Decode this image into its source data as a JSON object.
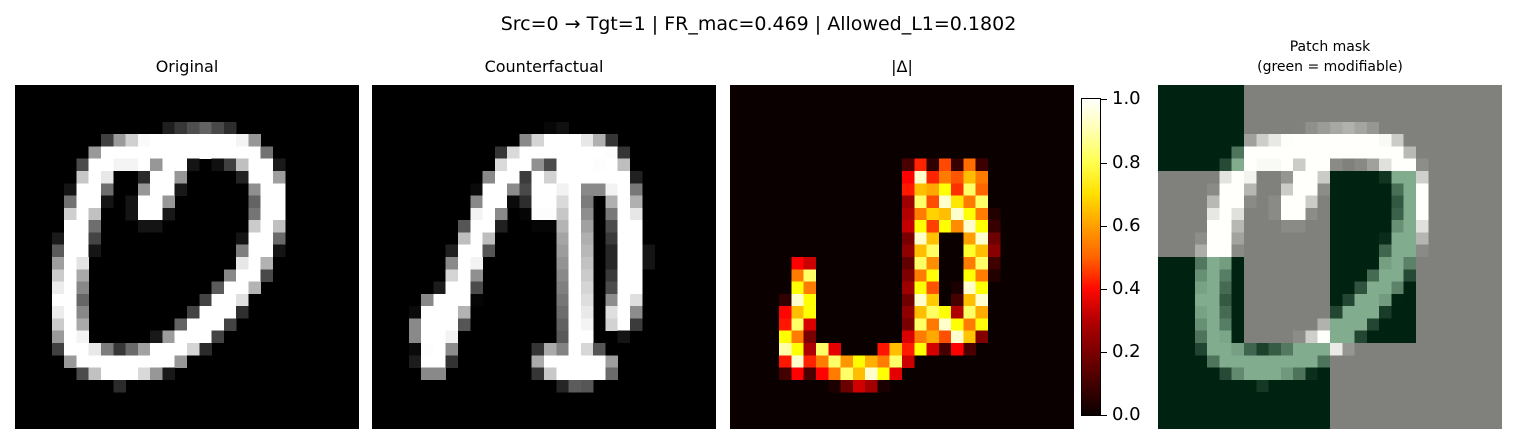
{
  "suptitle": "Src=0 → Tgt=1 | FR_mac=0.469 | Allowed_L1=0.1802",
  "chart_data": [
    {
      "type": "heatmap",
      "title": "Original",
      "colormap": "gray",
      "grid": 28,
      "strokes": [
        [
          [
            10.5,
            6
          ],
          [
            9,
            5.5
          ],
          [
            7.5,
            6
          ],
          [
            6.5,
            7.5
          ],
          [
            6,
            9
          ],
          [
            5.3,
            11
          ],
          [
            5,
            13
          ],
          [
            4.5,
            15
          ],
          [
            4.2,
            17.5
          ],
          [
            4.5,
            20
          ],
          [
            5,
            21.5
          ],
          [
            6.5,
            22.5
          ],
          [
            8.5,
            23
          ],
          [
            11,
            22.5
          ],
          [
            13,
            21.5
          ],
          [
            15,
            20
          ],
          [
            17,
            18
          ],
          [
            19,
            15.5
          ],
          [
            20,
            13
          ],
          [
            20.8,
            10.5
          ],
          [
            20.8,
            8.5
          ],
          [
            20,
            7
          ],
          [
            19,
            5.5
          ],
          [
            17.5,
            5
          ],
          [
            15.5,
            4.8
          ],
          [
            13,
            5
          ],
          [
            11,
            5.2
          ],
          [
            9,
            5.5
          ]
        ],
        [
          [
            13,
            6
          ],
          [
            12,
            8
          ],
          [
            11,
            10
          ]
        ]
      ]
    },
    {
      "type": "heatmap",
      "title": "Counterfactual",
      "colormap": "gray",
      "grid": 28,
      "strokes": [
        [
          [
            5,
            22.5
          ],
          [
            5.5,
            21
          ],
          [
            6.3,
            19
          ],
          [
            7,
            17
          ],
          [
            7.5,
            15
          ],
          [
            8.5,
            12.5
          ],
          [
            9.5,
            10
          ],
          [
            10.5,
            8
          ],
          [
            11.5,
            6.5
          ],
          [
            13,
            5.5
          ],
          [
            15,
            5
          ],
          [
            17,
            5.2
          ],
          [
            18.5,
            5.5
          ],
          [
            19.5,
            6.5
          ]
        ],
        [
          [
            16,
            6
          ],
          [
            16.3,
            9
          ],
          [
            16.5,
            12
          ],
          [
            16.6,
            15
          ],
          [
            16.7,
            18
          ],
          [
            16.8,
            20.5
          ],
          [
            16.5,
            22.5
          ]
        ],
        [
          [
            17,
            6.5
          ],
          [
            18,
            7.5
          ]
        ],
        [
          [
            19.5,
            6.5
          ],
          [
            20.3,
            8.5
          ],
          [
            20.8,
            11
          ],
          [
            21,
            14
          ],
          [
            20.8,
            17
          ],
          [
            20.2,
            19
          ]
        ],
        [
          [
            14.5,
            22.5
          ],
          [
            15.5,
            23
          ],
          [
            17,
            23.3
          ],
          [
            18.5,
            22.8
          ]
        ],
        [
          [
            13.8,
            8
          ],
          [
            14,
            10
          ]
        ],
        [
          [
            5.5,
            18
          ],
          [
            4.5,
            20
          ],
          [
            5,
            21
          ]
        ]
      ]
    },
    {
      "type": "heatmap",
      "title": "|Δ|",
      "colormap": "hot",
      "vmin": 0.0,
      "vmax": 1.0,
      "grid": 28,
      "strokes": [
        [
          [
            15.5,
            7.5
          ],
          [
            15.7,
            10
          ],
          [
            15.8,
            13
          ],
          [
            15.8,
            16
          ],
          [
            15.8,
            19
          ],
          [
            15.6,
            21
          ]
        ],
        [
          [
            17.5,
            7.5
          ],
          [
            17.8,
            9
          ],
          [
            18,
            11
          ]
        ],
        [
          [
            19.5,
            7.5
          ],
          [
            20,
            10
          ],
          [
            20.2,
            13
          ],
          [
            20,
            16
          ],
          [
            19.8,
            19.5
          ]
        ],
        [
          [
            17.5,
            19
          ],
          [
            18.5,
            20.5
          ],
          [
            19.5,
            19.5
          ]
        ],
        [
          [
            6,
            15.5
          ],
          [
            6,
            17.5
          ],
          [
            5.5,
            19
          ],
          [
            5,
            21
          ],
          [
            5.5,
            22.5
          ]
        ],
        [
          [
            7.5,
            22
          ],
          [
            8.5,
            23
          ],
          [
            10,
            23.3
          ],
          [
            11.5,
            23.3
          ],
          [
            12.8,
            22.8
          ],
          [
            13.5,
            22
          ]
        ]
      ],
      "colorbar_ticks": [
        "0.0",
        "0.2",
        "0.4",
        "0.6",
        "0.8",
        "1.0"
      ]
    },
    {
      "type": "heatmap",
      "title": "Patch mask",
      "subtitle": "(green = modifiable)",
      "colormap": "gray",
      "grid": 28,
      "mask_blocks": [
        {
          "cols": [
            0,
            7
          ],
          "rows": [
            0,
            7
          ],
          "modifiable": true
        },
        {
          "cols": [
            0,
            7
          ],
          "rows": [
            7,
            14
          ],
          "modifiable": false
        },
        {
          "cols": [
            0,
            7
          ],
          "rows": [
            14,
            28
          ],
          "modifiable": true
        },
        {
          "cols": [
            7,
            14
          ],
          "rows": [
            0,
            21
          ],
          "modifiable": false
        },
        {
          "cols": [
            7,
            14
          ],
          "rows": [
            21,
            28
          ],
          "modifiable": true
        },
        {
          "cols": [
            14,
            21
          ],
          "rows": [
            0,
            7
          ],
          "modifiable": false
        },
        {
          "cols": [
            14,
            21
          ],
          "rows": [
            7,
            21
          ],
          "modifiable": true
        },
        {
          "cols": [
            14,
            21
          ],
          "rows": [
            21,
            28
          ],
          "modifiable": false
        },
        {
          "cols": [
            21,
            28
          ],
          "rows": [
            0,
            28
          ],
          "modifiable": false
        }
      ]
    }
  ]
}
